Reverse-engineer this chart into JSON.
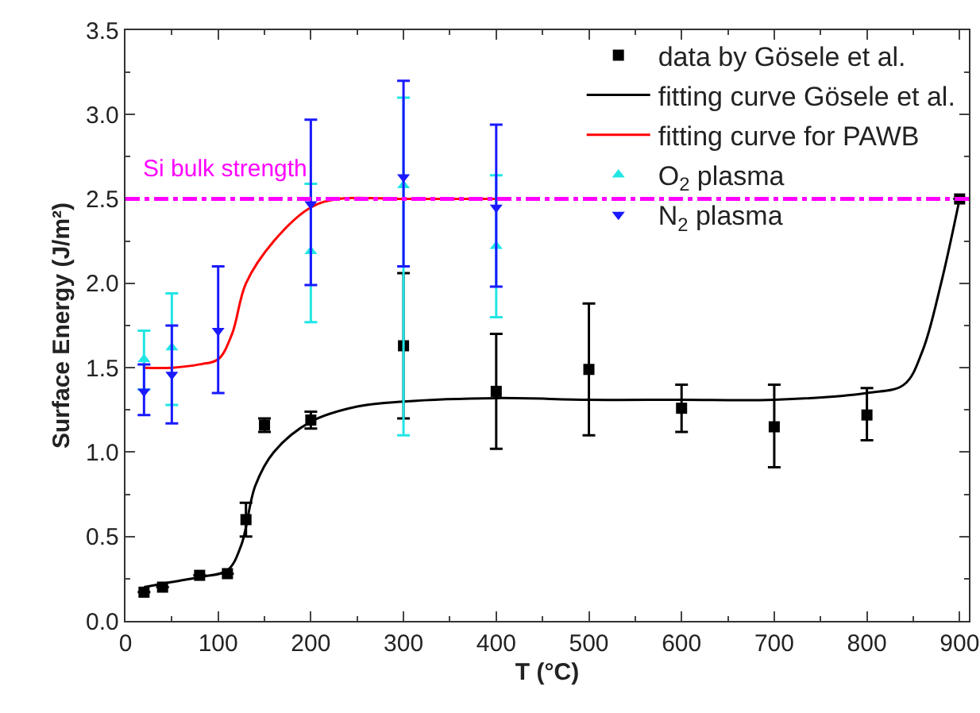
{
  "chart_data": {
    "type": "scatter",
    "xlabel": "T (°C)",
    "ylabel": "Surface Energy (J/m²)",
    "xlim": [
      0,
      910
    ],
    "xticks": [
      0,
      100,
      200,
      300,
      400,
      500,
      600,
      700,
      800,
      900
    ],
    "ylim": [
      0,
      3.5
    ],
    "yticks": [
      {
        "value": 0,
        "label": "0.0"
      },
      {
        "value": 0.5,
        "label": "0.5"
      },
      {
        "value": 1,
        "label": "1.0"
      },
      {
        "value": 1.5,
        "label": "1.5"
      },
      {
        "value": 2,
        "label": "2.0"
      },
      {
        "value": 2.5,
        "label": "2.5"
      },
      {
        "value": 3,
        "label": "3.0"
      },
      {
        "value": 3.5,
        "label": "3.5"
      }
    ],
    "grid": false,
    "legend": "top right",
    "ref_lines": [
      {
        "axis": "y",
        "value": 2.5,
        "label": "Si bulk strength",
        "color": "#ff00ff",
        "line_style": "dashdot"
      }
    ],
    "series": [
      {
        "name": "data by Gösele et al.",
        "marker": "square",
        "color": "#000000",
        "x": [
          20,
          40,
          80,
          110,
          130,
          150,
          200,
          300,
          400,
          500,
          600,
          700,
          800,
          900
        ],
        "values": [
          0.17,
          0.2,
          0.27,
          0.28,
          0.6,
          1.16,
          1.19,
          1.63,
          1.36,
          1.49,
          1.26,
          1.15,
          1.22,
          2.5
        ],
        "errors": [
          null,
          null,
          null,
          null,
          [
            0.5,
            0.7
          ],
          [
            1.12,
            1.2
          ],
          [
            1.14,
            1.24
          ],
          [
            1.2,
            2.06
          ],
          [
            1.02,
            1.7
          ],
          [
            1.1,
            1.88
          ],
          [
            1.12,
            1.4
          ],
          [
            0.91,
            1.4
          ],
          [
            1.07,
            1.38
          ],
          null
        ]
      },
      {
        "name": "fitting curve Gösele et al.",
        "type": "line",
        "marker": "none",
        "color": "#000000",
        "x": [
          20,
          50,
          80,
          110,
          125,
          140,
          160,
          200,
          250,
          300,
          400,
          500,
          600,
          700,
          800,
          840,
          860,
          880,
          900
        ],
        "values": [
          0.2,
          0.23,
          0.26,
          0.3,
          0.45,
          0.8,
          1.0,
          1.18,
          1.27,
          1.3,
          1.32,
          1.31,
          1.31,
          1.31,
          1.35,
          1.4,
          1.6,
          2.0,
          2.5
        ]
      },
      {
        "name": "fitting curve for PAWB",
        "type": "line",
        "marker": "none",
        "color": "#ff0000",
        "x": [
          20,
          50,
          80,
          100,
          115,
          130,
          160,
          200,
          230,
          300,
          400
        ],
        "values": [
          1.5,
          1.5,
          1.52,
          1.55,
          1.7,
          2.0,
          2.25,
          2.45,
          2.5,
          2.5,
          2.5
        ]
      },
      {
        "name": "O$_{2}$ plasma",
        "marker": "triangle",
        "color": "#22e5e5",
        "x": [
          20,
          50,
          100,
          200,
          300,
          400
        ],
        "values": [
          1.55,
          1.62,
          null,
          2.19,
          2.58,
          2.22
        ],
        "errors": [
          [
            1.37,
            1.72
          ],
          [
            1.28,
            1.94
          ],
          null,
          [
            1.77,
            2.59
          ],
          [
            1.1,
            3.1
          ],
          [
            1.8,
            2.64
          ]
        ]
      },
      {
        "name": "N$_{2}$ plasma",
        "marker": "triangle-down",
        "color": "#1a1aff",
        "x": [
          20,
          50,
          100,
          200,
          300,
          400
        ],
        "values": [
          1.36,
          1.46,
          1.72,
          2.47,
          2.63,
          2.45
        ],
        "errors": [
          [
            1.22,
            1.52
          ],
          [
            1.17,
            1.75
          ],
          [
            1.35,
            2.1
          ],
          [
            1.99,
            2.97
          ],
          [
            2.1,
            3.2
          ],
          [
            1.98,
            2.94
          ]
        ]
      }
    ]
  }
}
